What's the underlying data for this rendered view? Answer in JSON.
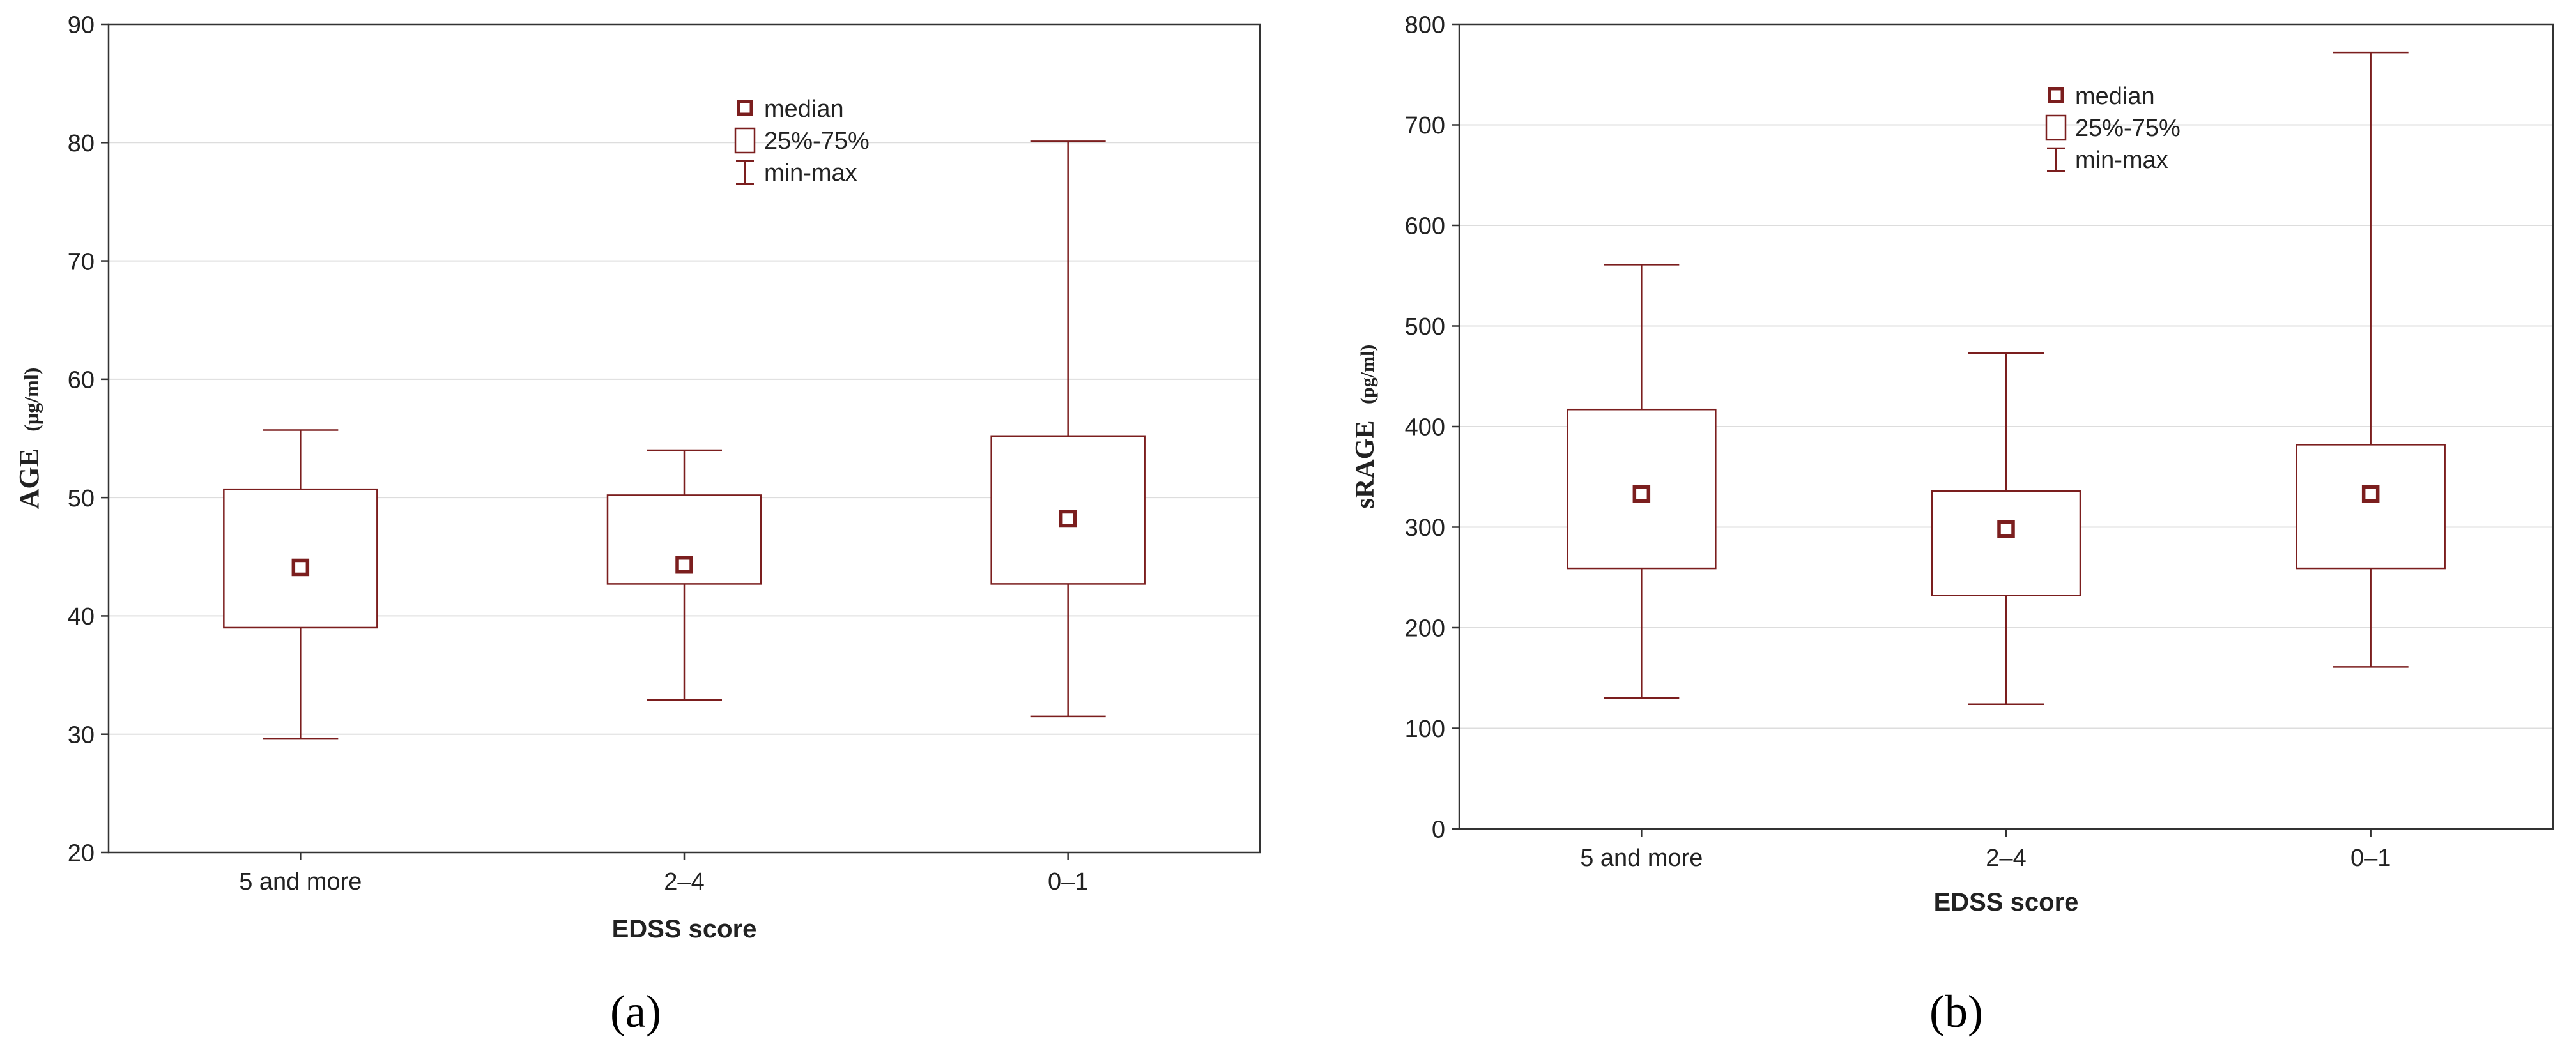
{
  "figure": {
    "panel_labels": [
      "(a)",
      "(b)"
    ]
  },
  "colors": {
    "box": "#7b1e1e",
    "grid": "#dddddd",
    "axis": "#333333",
    "text": "#222222"
  },
  "chart_data": [
    {
      "type": "box",
      "panel": "(a)",
      "title": "",
      "xlabel": "EDSS score",
      "ylabel_main": "AGE",
      "ylabel_unit": "(µg/ml)",
      "ylim": [
        20,
        90
      ],
      "yticks": [
        20,
        30,
        40,
        50,
        60,
        70,
        80,
        90
      ],
      "grid": "horizontal",
      "legend_position": "top-center",
      "legend": [
        "median",
        "25%-75%",
        "min-max"
      ],
      "categories": [
        "5 and more",
        "2–4",
        "0–1"
      ],
      "boxes": [
        {
          "min": 29.6,
          "q1": 39.0,
          "median": 44.1,
          "q3": 50.7,
          "max": 55.7
        },
        {
          "min": 32.9,
          "q1": 42.7,
          "median": 44.3,
          "q3": 50.2,
          "max": 54.0
        },
        {
          "min": 31.5,
          "q1": 42.7,
          "median": 48.2,
          "q3": 55.2,
          "max": 80.1
        }
      ]
    },
    {
      "type": "box",
      "panel": "(b)",
      "title": "",
      "xlabel": "EDSS score",
      "ylabel_main": "sRAGE",
      "ylabel_unit": "(pg/ml)",
      "ylim": [
        0,
        800
      ],
      "yticks": [
        0,
        100,
        200,
        300,
        400,
        500,
        600,
        700,
        800
      ],
      "grid": "horizontal",
      "legend_position": "top-center",
      "legend": [
        "median",
        "25%-75%",
        "min-max"
      ],
      "categories": [
        "5 and more",
        "2–4",
        "0–1"
      ],
      "boxes": [
        {
          "min": 130,
          "q1": 259,
          "median": 333,
          "q3": 417,
          "max": 561
        },
        {
          "min": 124,
          "q1": 232,
          "median": 298,
          "q3": 336,
          "max": 473
        },
        {
          "min": 161,
          "q1": 259,
          "median": 333,
          "q3": 382,
          "max": 772
        }
      ]
    }
  ]
}
